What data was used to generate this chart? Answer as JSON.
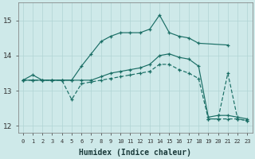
{
  "xlabel": "Humidex (Indice chaleur)",
  "ylabel": "",
  "xlim": [
    -0.5,
    23.5
  ],
  "ylim": [
    11.8,
    15.5
  ],
  "yticks": [
    12,
    13,
    14,
    15
  ],
  "xticks": [
    0,
    1,
    2,
    3,
    4,
    5,
    6,
    7,
    8,
    9,
    10,
    11,
    12,
    13,
    14,
    15,
    16,
    17,
    18,
    19,
    20,
    21,
    22,
    23
  ],
  "bg_color": "#cee9e9",
  "line_color": "#1a6e65",
  "grid_color": "#b0d4d4",
  "series": {
    "upper": {
      "x": [
        0,
        1,
        2,
        3,
        4,
        5,
        6,
        7,
        8,
        9,
        10,
        11,
        12,
        13,
        14,
        15,
        16,
        17,
        18,
        21
      ],
      "y": [
        13.3,
        13.45,
        13.3,
        13.3,
        13.3,
        13.3,
        13.7,
        14.05,
        14.4,
        14.55,
        14.65,
        14.65,
        14.65,
        14.75,
        15.15,
        14.65,
        14.55,
        14.5,
        14.35,
        14.3
      ]
    },
    "mid": {
      "x": [
        0,
        1,
        2,
        3,
        4,
        5,
        6,
        7,
        8,
        9,
        10,
        11,
        12,
        13,
        14,
        15,
        16,
        17,
        18,
        19,
        20,
        21,
        22,
        23
      ],
      "y": [
        13.3,
        13.3,
        13.3,
        13.3,
        13.3,
        13.3,
        13.3,
        13.3,
        13.4,
        13.5,
        13.55,
        13.6,
        13.65,
        13.75,
        14.0,
        14.05,
        13.95,
        13.9,
        13.7,
        12.25,
        12.3,
        12.3,
        12.25,
        12.2
      ]
    },
    "lower": {
      "x": [
        0,
        1,
        2,
        3,
        4,
        5,
        6,
        7,
        8,
        9,
        10,
        11,
        12,
        13,
        14,
        15,
        16,
        17,
        18,
        19,
        20,
        21,
        22,
        23
      ],
      "y": [
        13.3,
        13.3,
        13.3,
        13.3,
        13.3,
        12.75,
        13.2,
        13.25,
        13.3,
        13.35,
        13.4,
        13.45,
        13.5,
        13.55,
        13.75,
        13.75,
        13.6,
        13.5,
        13.35,
        12.2,
        12.2,
        12.2,
        12.2,
        12.15
      ]
    },
    "spike": {
      "x": [
        19,
        20,
        21,
        22,
        23
      ],
      "y": [
        12.2,
        12.2,
        13.5,
        12.2,
        12.15
      ]
    }
  }
}
